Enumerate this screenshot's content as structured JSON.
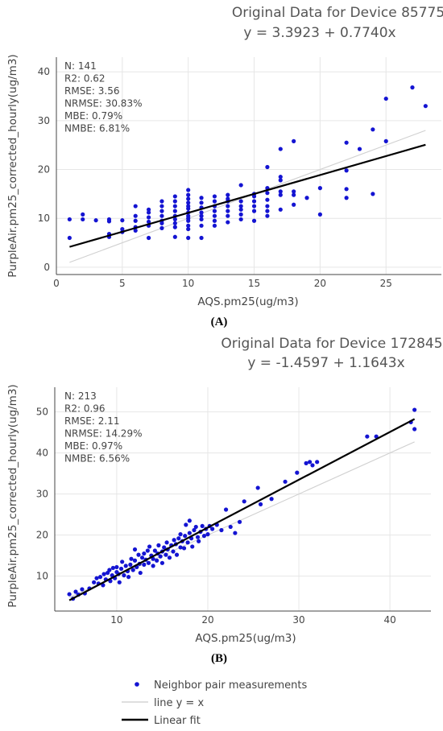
{
  "chart_data": [
    {
      "type": "scatter",
      "title_line1": "Original Data for Device 85775",
      "title_line2": "y = 3.3923 + 0.7740x",
      "xlabel": "AQS.pm25(ug/m3)",
      "ylabel": "PurpleAir.pm25_corrected_hourly(ug/m3)",
      "xlim": [
        0,
        29.2
      ],
      "ylim": [
        -1.5,
        43
      ],
      "xticks": [
        0,
        5,
        10,
        15,
        20,
        25
      ],
      "yticks": [
        0,
        10,
        20,
        30,
        40
      ],
      "grid": true,
      "panel_label": "(A)",
      "stats": [
        "N: 141",
        "R2: 0.62",
        "RMSE: 3.56",
        "NRMSE: 30.83%",
        "MBE: 0.79%",
        "NMBE: 6.81%"
      ],
      "fit": {
        "intercept": 3.3923,
        "slope": 0.774,
        "x_range": [
          1,
          28
        ]
      },
      "identity": {
        "x_range": [
          1,
          28
        ]
      },
      "points": [
        [
          1,
          6
        ],
        [
          1,
          9.8
        ],
        [
          2,
          9.8
        ],
        [
          2,
          10.8
        ],
        [
          3,
          9.6
        ],
        [
          4,
          6.2
        ],
        [
          4,
          6.8
        ],
        [
          4,
          9.4
        ],
        [
          4,
          9.8
        ],
        [
          5,
          7.2
        ],
        [
          5,
          7.8
        ],
        [
          5,
          9.6
        ],
        [
          6,
          7.5
        ],
        [
          6,
          8.2
        ],
        [
          6,
          9.5
        ],
        [
          6,
          10.5
        ],
        [
          6,
          12.5
        ],
        [
          7,
          6
        ],
        [
          7,
          8.5
        ],
        [
          7,
          9.3
        ],
        [
          7,
          10.2
        ],
        [
          7,
          11.2
        ],
        [
          7,
          11.8
        ],
        [
          8,
          8
        ],
        [
          8,
          9
        ],
        [
          8,
          9.5
        ],
        [
          8,
          10.5
        ],
        [
          8,
          11.5
        ],
        [
          8,
          12.5
        ],
        [
          8,
          13.5
        ],
        [
          9,
          6.2
        ],
        [
          9,
          8.2
        ],
        [
          9,
          9
        ],
        [
          9,
          9.8
        ],
        [
          9,
          10.5
        ],
        [
          9,
          11.5
        ],
        [
          9,
          12.5
        ],
        [
          9,
          13.5
        ],
        [
          9,
          14.5
        ],
        [
          10,
          6
        ],
        [
          10,
          7.8
        ],
        [
          10,
          8.5
        ],
        [
          10,
          9.5
        ],
        [
          10,
          10
        ],
        [
          10,
          10.5
        ],
        [
          10,
          11.2
        ],
        [
          10,
          12
        ],
        [
          10,
          12.5
        ],
        [
          10,
          13.2
        ],
        [
          10,
          14
        ],
        [
          10,
          14.8
        ],
        [
          10,
          15.8
        ],
        [
          11,
          6
        ],
        [
          11,
          8.5
        ],
        [
          11,
          9.8
        ],
        [
          11,
          10.5
        ],
        [
          11,
          11.2
        ],
        [
          11,
          12.2
        ],
        [
          11,
          13.2
        ],
        [
          11,
          14.2
        ],
        [
          12,
          8.5
        ],
        [
          12,
          9.5
        ],
        [
          12,
          10.5
        ],
        [
          12,
          11.5
        ],
        [
          12,
          12.5
        ],
        [
          12,
          13.5
        ],
        [
          12,
          14.5
        ],
        [
          13,
          9.2
        ],
        [
          13,
          10.5
        ],
        [
          13,
          11.5
        ],
        [
          13,
          12.5
        ],
        [
          13,
          13.5
        ],
        [
          13,
          14
        ],
        [
          13,
          14.8
        ],
        [
          14,
          9.8
        ],
        [
          14,
          10.8
        ],
        [
          14,
          11.8
        ],
        [
          14,
          12.5
        ],
        [
          14,
          13.5
        ],
        [
          14,
          16.8
        ],
        [
          15,
          9.5
        ],
        [
          15,
          11.5
        ],
        [
          15,
          12.5
        ],
        [
          15,
          13.5
        ],
        [
          15,
          14.5
        ],
        [
          15,
          15
        ],
        [
          16,
          10.5
        ],
        [
          16,
          11.5
        ],
        [
          16,
          12.5
        ],
        [
          16,
          13.8
        ],
        [
          16,
          15.2
        ],
        [
          16,
          16.2
        ],
        [
          16,
          20.5
        ],
        [
          17,
          11.8
        ],
        [
          17,
          14.8
        ],
        [
          17,
          15.5
        ],
        [
          17,
          17.8
        ],
        [
          17,
          18.5
        ],
        [
          17,
          24.2
        ],
        [
          18,
          12.8
        ],
        [
          18,
          14.8
        ],
        [
          18,
          15.5
        ],
        [
          18,
          25.8
        ],
        [
          19,
          14.2
        ],
        [
          20,
          10.8
        ],
        [
          20,
          16.2
        ],
        [
          22,
          14.2
        ],
        [
          22,
          16
        ],
        [
          22,
          19.8
        ],
        [
          22,
          25.5
        ],
        [
          23,
          24.2
        ],
        [
          24,
          15
        ],
        [
          24,
          28.2
        ],
        [
          25,
          25.8
        ],
        [
          25,
          34.5
        ],
        [
          27,
          36.8
        ],
        [
          28,
          33
        ]
      ]
    },
    {
      "type": "scatter",
      "title_line1": "Original Data for Device 172845",
      "title_line2": "y = -1.4597 + 1.1643x",
      "xlabel": "AQS.pm25(ug/m3)",
      "ylabel": "PurpleAir.pm25_corrected_hourly(ug/m3)",
      "xlim": [
        3.2,
        44.5
      ],
      "ylim": [
        1.5,
        56
      ],
      "xticks": [
        10,
        20,
        30,
        40
      ],
      "yticks": [
        10,
        20,
        30,
        40,
        50
      ],
      "grid": true,
      "panel_label": "(B)",
      "stats": [
        "N: 213",
        "R2: 0.96",
        "RMSE: 2.11",
        "NRMSE: 14.29%",
        "MBE: 0.97%",
        "NMBE: 6.56%"
      ],
      "fit": {
        "intercept": -1.4597,
        "slope": 1.1643,
        "x_range": [
          4.8,
          42.7
        ]
      },
      "identity": {
        "x_range": [
          4.8,
          42.7
        ]
      },
      "points": [
        [
          4.8,
          5.6
        ],
        [
          5.2,
          4.5
        ],
        [
          5.5,
          6.2
        ],
        [
          5.8,
          5.5
        ],
        [
          6.2,
          6.8
        ],
        [
          6.5,
          5.8
        ],
        [
          7,
          7
        ],
        [
          7.5,
          8.5
        ],
        [
          7.8,
          9.5
        ],
        [
          8,
          8.2
        ],
        [
          8.2,
          9.8
        ],
        [
          8.5,
          7.8
        ],
        [
          8.6,
          10.5
        ],
        [
          8.8,
          9.2
        ],
        [
          9,
          10.8
        ],
        [
          9.2,
          11.5
        ],
        [
          9.3,
          8.8
        ],
        [
          9.5,
          10.2
        ],
        [
          9.6,
          12
        ],
        [
          9.8,
          9.5
        ],
        [
          10,
          11
        ],
        [
          10,
          12.2
        ],
        [
          10.2,
          10.5
        ],
        [
          10.3,
          8.5
        ],
        [
          10.5,
          11.8
        ],
        [
          10.6,
          13.5
        ],
        [
          10.8,
          10.2
        ],
        [
          11,
          12.5
        ],
        [
          11.2,
          11.2
        ],
        [
          11.3,
          9.8
        ],
        [
          11.5,
          12.8
        ],
        [
          11.6,
          14.2
        ],
        [
          11.8,
          11.5
        ],
        [
          12,
          13.8
        ],
        [
          12,
          16.5
        ],
        [
          12.2,
          12.2
        ],
        [
          12.4,
          15.2
        ],
        [
          12.5,
          13
        ],
        [
          12.6,
          10.8
        ],
        [
          12.8,
          14.5
        ],
        [
          13,
          12.8
        ],
        [
          13,
          15.5
        ],
        [
          13.2,
          14
        ],
        [
          13.4,
          16.2
        ],
        [
          13.5,
          13.2
        ],
        [
          13.6,
          17.2
        ],
        [
          13.8,
          15
        ],
        [
          14,
          14.2
        ],
        [
          14,
          12.5
        ],
        [
          14.2,
          16.2
        ],
        [
          14.4,
          13.8
        ],
        [
          14.5,
          15.5
        ],
        [
          14.6,
          17.5
        ],
        [
          14.8,
          14.8
        ],
        [
          15,
          16
        ],
        [
          15,
          13.2
        ],
        [
          15.2,
          17
        ],
        [
          15.4,
          15.2
        ],
        [
          15.5,
          18.2
        ],
        [
          15.6,
          16.5
        ],
        [
          15.8,
          14.5
        ],
        [
          16,
          17.5
        ],
        [
          16.2,
          16
        ],
        [
          16.3,
          18.8
        ],
        [
          16.5,
          17.8
        ],
        [
          16.6,
          15.2
        ],
        [
          16.8,
          19.2
        ],
        [
          17,
          17
        ],
        [
          17,
          20.2
        ],
        [
          17.2,
          18.5
        ],
        [
          17.4,
          16.8
        ],
        [
          17.5,
          19.8
        ],
        [
          17.6,
          22.5
        ],
        [
          17.8,
          18.2
        ],
        [
          18,
          20.5
        ],
        [
          18,
          23.5
        ],
        [
          18.2,
          19.2
        ],
        [
          18.3,
          17.2
        ],
        [
          18.5,
          21.2
        ],
        [
          18.7,
          22
        ],
        [
          18.9,
          19.5
        ],
        [
          19,
          18.5
        ],
        [
          19.2,
          20.8
        ],
        [
          19.4,
          22.2
        ],
        [
          19.6,
          19.8
        ],
        [
          19.8,
          21.5
        ],
        [
          20,
          20.2
        ],
        [
          20.2,
          22.2
        ],
        [
          20.5,
          21.5
        ],
        [
          21,
          22.5
        ],
        [
          21.5,
          21.2
        ],
        [
          22,
          26.2
        ],
        [
          22.5,
          22
        ],
        [
          23,
          20.5
        ],
        [
          23.5,
          23.2
        ],
        [
          24,
          28.2
        ],
        [
          25.5,
          31.5
        ],
        [
          25.8,
          27.5
        ],
        [
          27,
          28.8
        ],
        [
          28.5,
          33
        ],
        [
          29.8,
          35.2
        ],
        [
          30.8,
          37.5
        ],
        [
          31.2,
          37.8
        ],
        [
          31.5,
          37
        ],
        [
          32,
          37.8
        ],
        [
          37.5,
          44
        ],
        [
          38.5,
          44
        ],
        [
          42.3,
          47.5
        ],
        [
          42.7,
          45.8
        ],
        [
          42.7,
          50.5
        ]
      ]
    }
  ],
  "legend": {
    "items": [
      {
        "label": "Neighbor pair measurements",
        "kind": "marker",
        "color": "#1414d2"
      },
      {
        "label": "line y = x",
        "kind": "line",
        "color": "#d3d3d3"
      },
      {
        "label": "Linear fit",
        "kind": "line",
        "color": "#000000"
      }
    ]
  },
  "colors": {
    "points": "#1414d2",
    "fit": "#000000",
    "identity": "#d0d0d0",
    "grid": "#e6e6e6"
  }
}
